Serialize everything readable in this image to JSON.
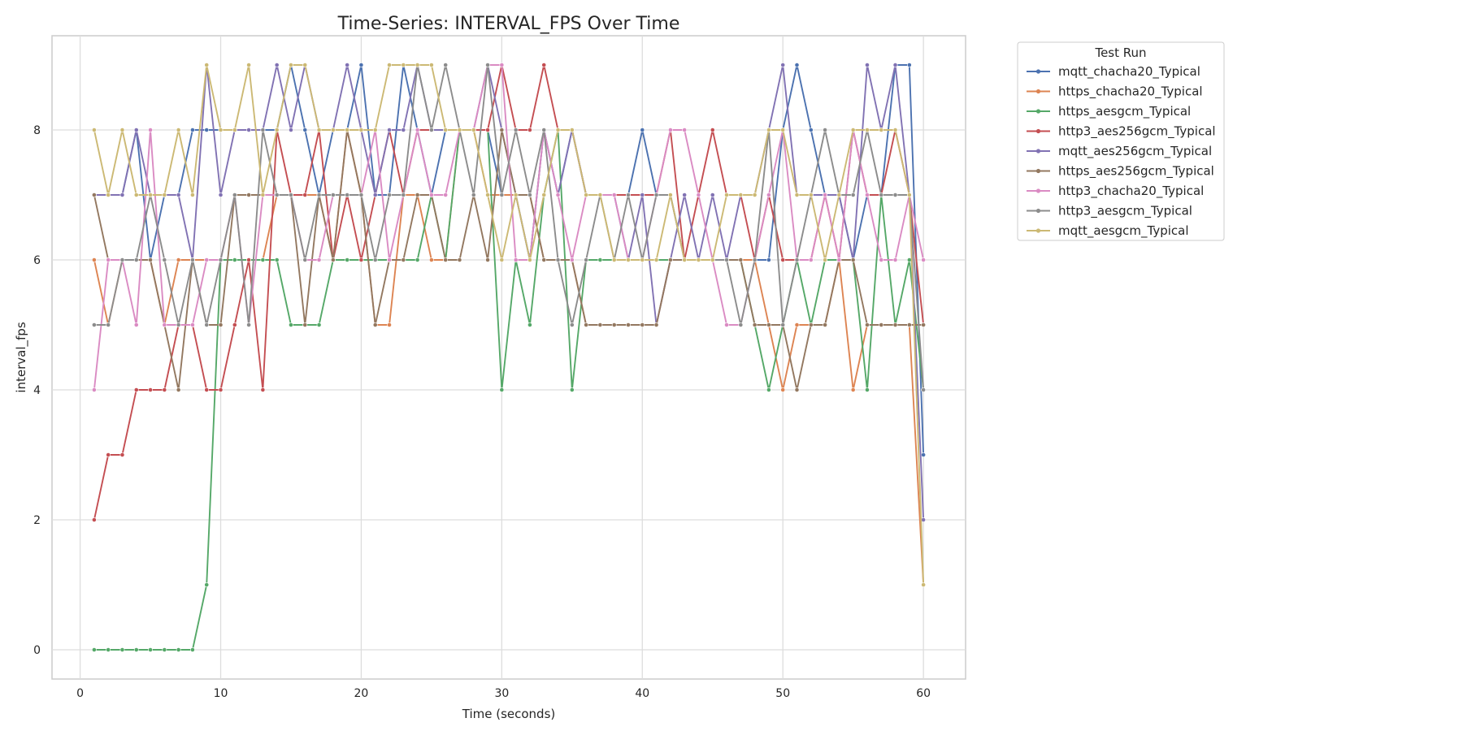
{
  "chart_data": {
    "type": "line",
    "title": "Time-Series: INTERVAL_FPS Over Time",
    "xlabel": "Time (seconds)",
    "ylabel": "interval_fps",
    "xlim": [
      -2,
      63
    ],
    "ylim": [
      -0.45,
      9.45
    ],
    "xticks": [
      0,
      10,
      20,
      30,
      40,
      50,
      60
    ],
    "yticks": [
      0,
      2,
      4,
      6,
      8
    ],
    "grid": true,
    "legend": {
      "title": "Test Run",
      "placement": "outside-upper-right"
    },
    "x": [
      1,
      2,
      3,
      4,
      5,
      6,
      7,
      8,
      9,
      10,
      11,
      12,
      13,
      14,
      15,
      16,
      17,
      18,
      19,
      20,
      21,
      22,
      23,
      24,
      25,
      26,
      27,
      28,
      29,
      30,
      31,
      32,
      33,
      34,
      35,
      36,
      37,
      38,
      39,
      40,
      41,
      42,
      43,
      44,
      45,
      46,
      47,
      48,
      49,
      50,
      51,
      52,
      53,
      54,
      55,
      56,
      57,
      58,
      59,
      60
    ],
    "series": [
      {
        "name": "mqtt_chacha20_Typical",
        "color": "#4c72b0",
        "values": [
          7,
          7,
          7,
          8,
          6,
          7,
          7,
          8,
          8,
          8,
          8,
          8,
          8,
          8,
          9,
          8,
          7,
          8,
          8,
          9,
          7,
          7,
          9,
          8,
          7,
          8,
          8,
          8,
          8,
          7,
          7,
          6,
          8,
          7,
          8,
          7,
          7,
          7,
          7,
          8,
          7,
          7,
          6,
          6,
          6,
          6,
          6,
          6,
          6,
          8,
          9,
          8,
          7,
          7,
          6,
          7,
          7,
          9,
          9,
          3
        ]
      },
      {
        "name": "https_chacha20_Typical",
        "color": "#dd8452",
        "values": [
          6,
          5,
          6,
          6,
          6,
          5,
          6,
          6,
          6,
          6,
          6,
          6,
          6,
          7,
          7,
          7,
          7,
          6,
          8,
          7,
          5,
          5,
          7,
          7,
          6,
          6,
          8,
          8,
          7,
          7,
          7,
          7,
          6,
          6,
          6,
          5,
          5,
          5,
          5,
          5,
          5,
          6,
          6,
          6,
          6,
          6,
          6,
          6,
          5,
          4,
          5,
          5,
          5,
          6,
          4,
          5,
          5,
          5,
          5,
          1
        ]
      },
      {
        "name": "https_aesgcm_Typical",
        "color": "#55a868",
        "values": [
          0,
          0,
          0,
          0,
          0,
          0,
          0,
          0,
          1,
          6,
          6,
          6,
          6,
          6,
          5,
          5,
          5,
          6,
          6,
          6,
          6,
          6,
          6,
          6,
          7,
          6,
          8,
          8,
          8,
          4,
          6,
          5,
          7,
          8,
          4,
          6,
          6,
          6,
          6,
          6,
          6,
          6,
          6,
          6,
          6,
          6,
          6,
          5,
          4,
          5,
          6,
          5,
          6,
          6,
          6,
          4,
          7,
          5,
          6,
          4
        ]
      },
      {
        "name": "http3_aes256gcm_Typical",
        "color": "#c44e52",
        "values": [
          2,
          3,
          3,
          4,
          4,
          4,
          5,
          5,
          4,
          4,
          5,
          6,
          4,
          8,
          7,
          7,
          8,
          6,
          7,
          6,
          7,
          8,
          7,
          8,
          8,
          8,
          8,
          8,
          8,
          9,
          8,
          8,
          9,
          8,
          8,
          7,
          7,
          7,
          7,
          7,
          7,
          8,
          6,
          7,
          8,
          7,
          7,
          6,
          7,
          6,
          6,
          6,
          7,
          6,
          8,
          7,
          7,
          8,
          7,
          5
        ]
      },
      {
        "name": "mqtt_aes256gcm_Typical",
        "color": "#8172b3",
        "values": [
          7,
          7,
          7,
          8,
          7,
          7,
          7,
          6,
          9,
          7,
          8,
          8,
          8,
          9,
          8,
          9,
          8,
          8,
          9,
          8,
          7,
          8,
          8,
          9,
          8,
          8,
          8,
          8,
          9,
          8,
          7,
          6,
          8,
          7,
          8,
          7,
          7,
          7,
          6,
          7,
          5,
          6,
          7,
          6,
          7,
          6,
          7,
          7,
          8,
          9,
          7,
          7,
          7,
          7,
          6,
          9,
          8,
          9,
          7,
          2
        ]
      },
      {
        "name": "https_aes256gcm_Typical",
        "color": "#937860",
        "values": [
          7,
          6,
          6,
          6,
          6,
          5,
          4,
          6,
          5,
          5,
          7,
          7,
          7,
          7,
          7,
          5,
          7,
          6,
          8,
          7,
          5,
          6,
          6,
          7,
          7,
          6,
          6,
          7,
          6,
          8,
          7,
          7,
          6,
          6,
          6,
          5,
          5,
          5,
          5,
          5,
          5,
          6,
          6,
          6,
          6,
          6,
          6,
          5,
          5,
          5,
          4,
          5,
          5,
          6,
          6,
          5,
          5,
          5,
          5,
          5
        ]
      },
      {
        "name": "http3_chacha20_Typical",
        "color": "#da8bc3",
        "values": [
          4,
          6,
          6,
          5,
          8,
          5,
          5,
          5,
          6,
          6,
          7,
          5,
          7,
          7,
          7,
          6,
          6,
          7,
          7,
          7,
          8,
          6,
          7,
          8,
          7,
          7,
          8,
          8,
          9,
          9,
          6,
          6,
          8,
          7,
          6,
          7,
          7,
          7,
          6,
          6,
          7,
          8,
          8,
          7,
          6,
          5,
          5,
          6,
          7,
          8,
          6,
          6,
          7,
          6,
          8,
          7,
          6,
          6,
          7,
          6
        ]
      },
      {
        "name": "http3_aesgcm_Typical",
        "color": "#8c8c8c",
        "values": [
          5,
          5,
          6,
          6,
          7,
          6,
          5,
          6,
          5,
          6,
          7,
          5,
          8,
          7,
          7,
          6,
          7,
          7,
          7,
          7,
          6,
          7,
          7,
          9,
          8,
          9,
          8,
          7,
          9,
          7,
          8,
          7,
          8,
          6,
          5,
          6,
          7,
          6,
          7,
          6,
          7,
          7,
          6,
          6,
          6,
          6,
          5,
          6,
          8,
          5,
          6,
          7,
          8,
          7,
          7,
          8,
          7,
          7,
          7,
          4
        ]
      },
      {
        "name": "mqtt_aesgcm_Typical",
        "color": "#ccb974",
        "values": [
          8,
          7,
          8,
          7,
          7,
          7,
          8,
          7,
          9,
          8,
          8,
          9,
          7,
          8,
          9,
          9,
          8,
          8,
          8,
          8,
          8,
          9,
          9,
          9,
          9,
          8,
          8,
          8,
          7,
          6,
          7,
          6,
          7,
          8,
          8,
          7,
          7,
          6,
          6,
          6,
          6,
          7,
          6,
          6,
          6,
          7,
          7,
          7,
          8,
          8,
          7,
          7,
          6,
          7,
          8,
          8,
          8,
          8,
          7,
          1
        ]
      }
    ]
  }
}
